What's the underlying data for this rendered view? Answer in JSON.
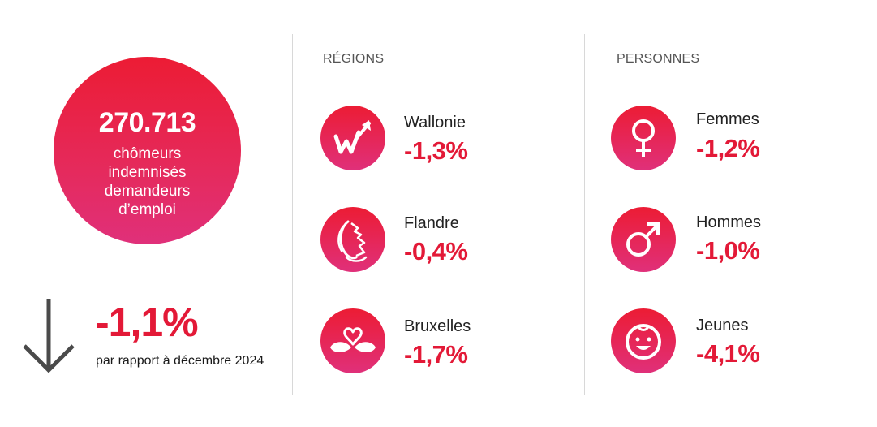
{
  "summary": {
    "total_value": "270.713",
    "description_lines": [
      "chômeurs",
      "indemnisés",
      "demandeurs",
      "d’emploi"
    ],
    "change_value": "-1,1%",
    "change_caption": "par rapport à décembre 2024"
  },
  "regions": {
    "title": "RÉGIONS",
    "items": [
      {
        "label": "Wallonie",
        "value": "-1,3%",
        "icon": "wallonia-rooster-icon"
      },
      {
        "label": "Flandre",
        "value": "-0,4%",
        "icon": "flanders-lion-icon"
      },
      {
        "label": "Bruxelles",
        "value": "-1,7%",
        "icon": "brussels-heart-iris-icon"
      }
    ]
  },
  "persons": {
    "title": "PERSONNES",
    "items": [
      {
        "label": "Femmes",
        "value": "-1,2%",
        "icon": "female-symbol-icon"
      },
      {
        "label": "Hommes",
        "value": "-1,0%",
        "icon": "male-symbol-icon"
      },
      {
        "label": "Jeunes",
        "value": "-4,1%",
        "icon": "child-face-icon"
      }
    ]
  },
  "colors": {
    "accent": "#e31937",
    "gradient_top": "#ec1c34",
    "gradient_bottom": "#e0307a",
    "arrow": "#4a4a4a"
  }
}
